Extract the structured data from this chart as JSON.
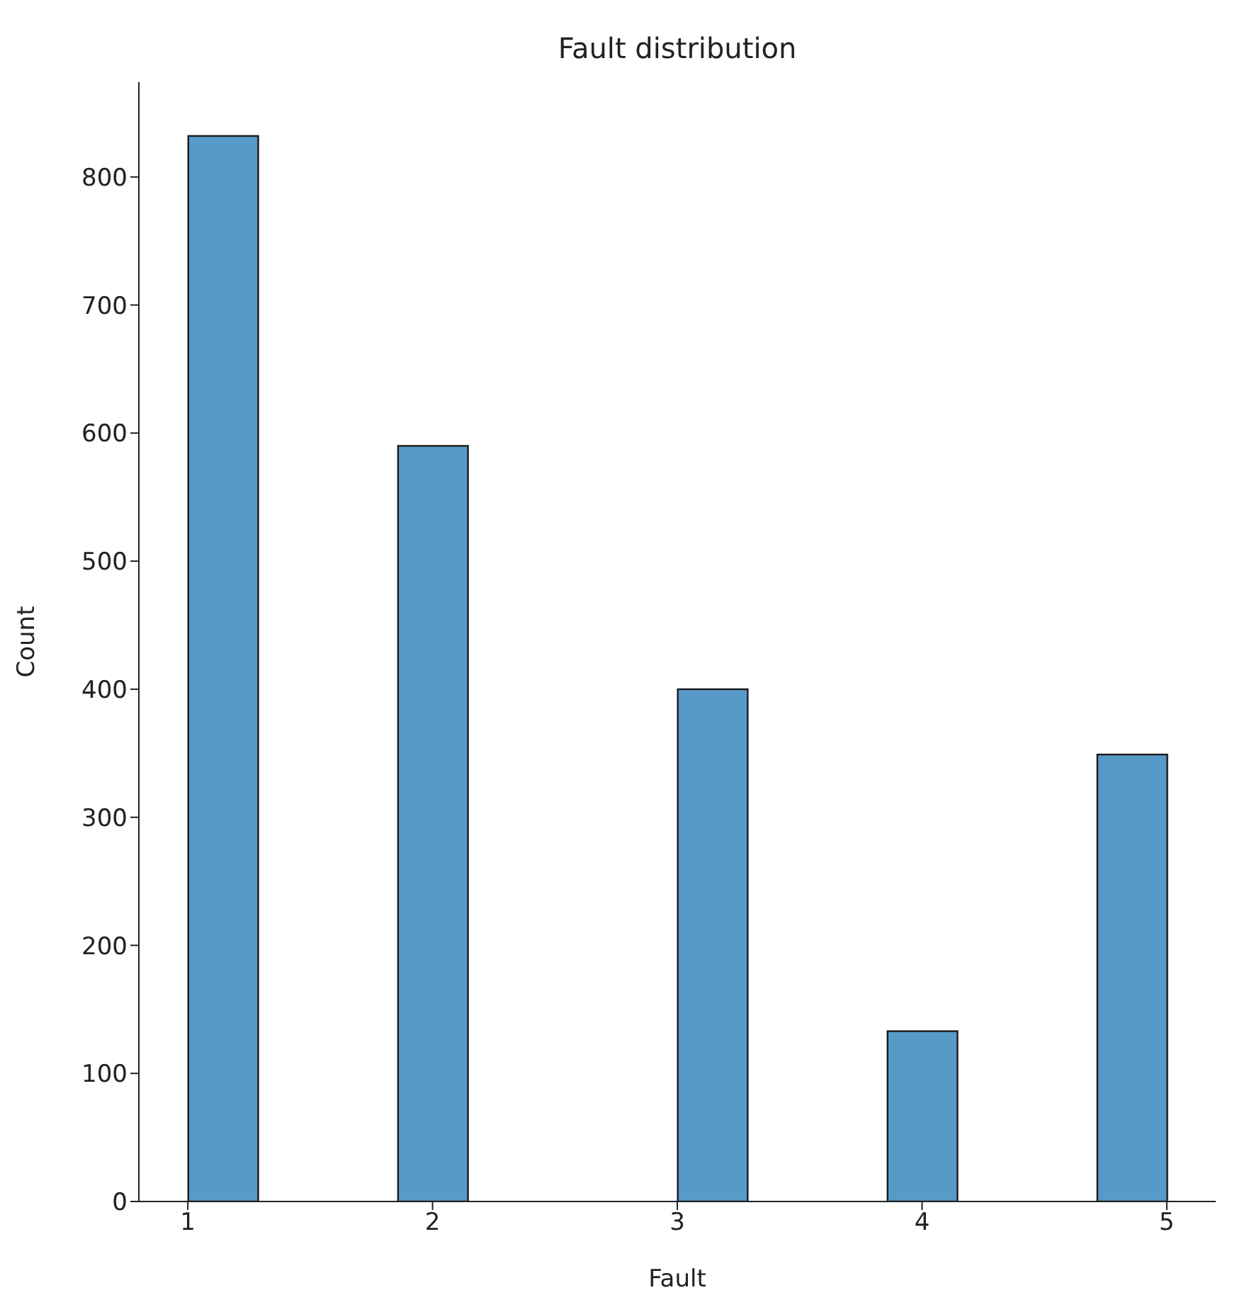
{
  "chart_data": {
    "type": "histogram",
    "title": "Fault distribution",
    "xlabel": "Fault",
    "ylabel": "Count",
    "bins": [
      1,
      1.2857142857142858,
      1.5714285714285714,
      1.8571428571428572,
      2.142857142857143,
      2.4285714285714284,
      2.7142857142857144,
      3,
      3.2857142857142856,
      3.5714285714285716,
      3.857142857142857,
      4.142857142857143,
      4.428571428571429,
      4.714285714285714,
      5
    ],
    "values": [
      832,
      0,
      0,
      590,
      0,
      0,
      0,
      400,
      0,
      0,
      133,
      0,
      0,
      349
    ],
    "color": "#5799c7",
    "xlim": [
      0.8,
      5.2
    ],
    "xticks": [
      1,
      2,
      3,
      4,
      5
    ],
    "ylim": [
      0,
      874
    ],
    "yticks": [
      0,
      100,
      200,
      300,
      400,
      500,
      600,
      700,
      800
    ],
    "grid": false
  }
}
